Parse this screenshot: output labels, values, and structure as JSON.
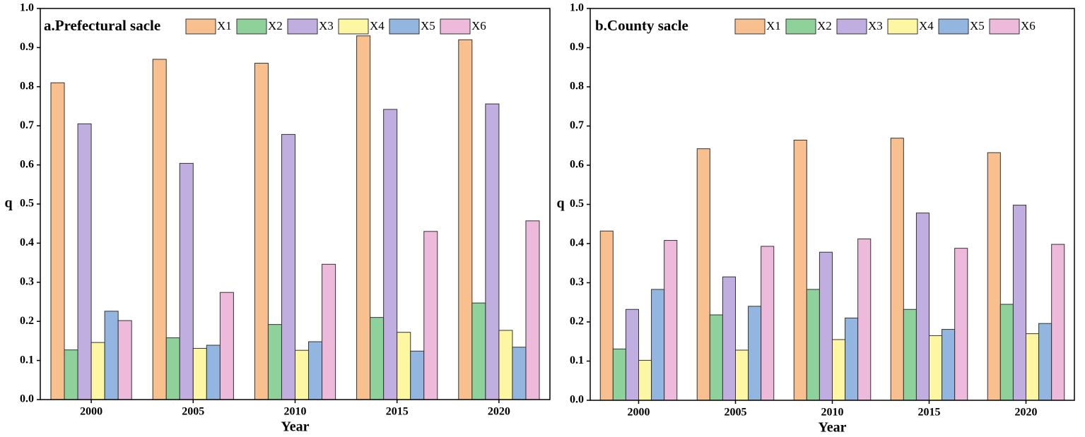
{
  "chart_data": [
    {
      "type": "bar",
      "title": "a.Prefectural sacle",
      "x_label": "Year",
      "y_label": "q",
      "categories": [
        "2000",
        "2005",
        "2010",
        "2015",
        "2020"
      ],
      "ylim": [
        0,
        1
      ],
      "yticks": [
        {
          "value": 0,
          "label": "0.0"
        },
        0.1,
        0.2,
        0.3,
        0.4,
        0.5,
        0.6,
        0.7,
        0.8,
        0.9,
        {
          "value": 1,
          "label": "1.0"
        }
      ],
      "series": [
        {
          "name": "X1",
          "color": "#f9c08f",
          "values": [
            0.81,
            0.87,
            0.86,
            0.93,
            0.92
          ]
        },
        {
          "name": "X2",
          "color": "#8fd19a",
          "values": [
            0.127,
            0.158,
            0.192,
            0.21,
            0.247
          ]
        },
        {
          "name": "X3",
          "color": "#c0aee0",
          "values": [
            0.705,
            0.604,
            0.678,
            0.742,
            0.756
          ]
        },
        {
          "name": "X4",
          "color": "#fdf6a3",
          "values": [
            0.146,
            0.131,
            0.126,
            0.172,
            0.177
          ]
        },
        {
          "name": "X5",
          "color": "#93b6e1",
          "values": [
            0.226,
            0.139,
            0.148,
            0.124,
            0.134
          ]
        },
        {
          "name": "X6",
          "color": "#eebadc",
          "values": [
            0.202,
            0.274,
            0.346,
            0.43,
            0.457
          ]
        }
      ]
    },
    {
      "type": "bar",
      "title": "b.County sacle",
      "x_label": "Year",
      "y_label": "q",
      "categories": [
        "2000",
        "2005",
        "2010",
        "2015",
        "2020"
      ],
      "ylim": [
        0,
        1
      ],
      "yticks": [
        {
          "value": 0,
          "label": "0.0"
        },
        0.1,
        0.2,
        0.3,
        0.4,
        0.5,
        0.6,
        0.7,
        0.8,
        0.9,
        {
          "value": 1,
          "label": "1.0"
        }
      ],
      "series": [
        {
          "name": "X1",
          "color": "#f9c08f",
          "values": [
            0.432,
            0.642,
            0.664,
            0.669,
            0.632
          ]
        },
        {
          "name": "X2",
          "color": "#8fd19a",
          "values": [
            0.131,
            0.218,
            0.283,
            0.232,
            0.245
          ]
        },
        {
          "name": "X3",
          "color": "#c0aee0",
          "values": [
            0.232,
            0.315,
            0.378,
            0.478,
            0.498
          ]
        },
        {
          "name": "X4",
          "color": "#fdf6a3",
          "values": [
            0.102,
            0.128,
            0.155,
            0.165,
            0.17
          ]
        },
        {
          "name": "X5",
          "color": "#93b6e1",
          "values": [
            0.283,
            0.24,
            0.21,
            0.181,
            0.196
          ]
        },
        {
          "name": "X6",
          "color": "#eebadc",
          "values": [
            0.408,
            0.393,
            0.412,
            0.388,
            0.398
          ]
        }
      ]
    }
  ]
}
